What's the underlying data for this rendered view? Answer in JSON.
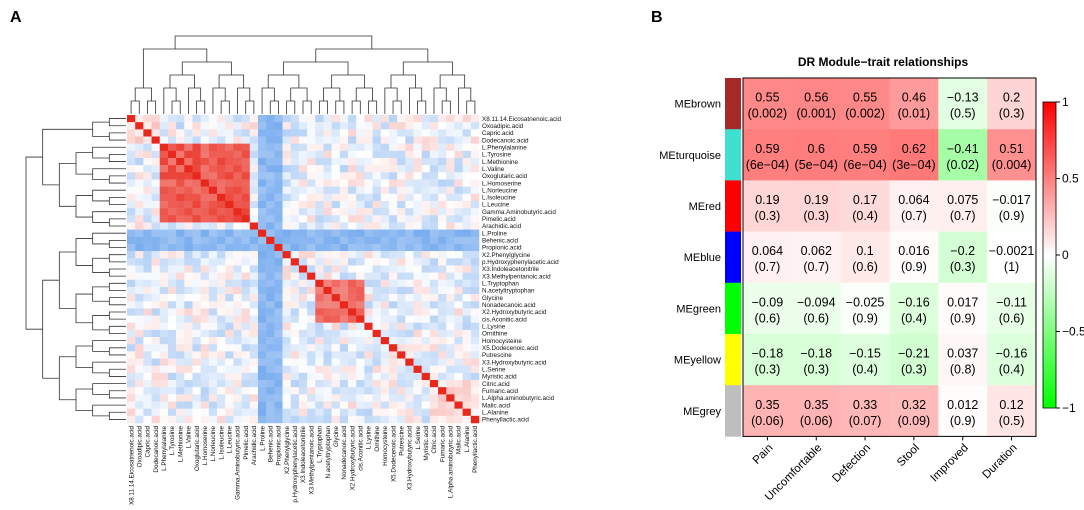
{
  "panels": {
    "a": "A",
    "b": "B"
  },
  "chart_data": [
    {
      "type": "heatmap",
      "panel": "A",
      "description_kind": "metabolite correlation heatmap with dendrograms",
      "color_scale": {
        "low": "#2e7fe6",
        "mid": "#ffffff",
        "high": "#e8281c"
      },
      "row_labels": [
        "X8.11.14.Eicosatrienoic.acid",
        "Oxoadipic.acid",
        "Capric.acid",
        "Dodecanoic.acid",
        "L.Phenylalanine",
        "L.Tyrosine",
        "L.Methionine",
        "L.Valine",
        "Oxoglutaric.acid",
        "L.Homoserine",
        "L.Norleucine",
        "L.Isoleucine",
        "L.Leucine",
        "Gamma.Aminobutyric.acid",
        "Pimelic.acid",
        "Arachidic.acid",
        "L.Proline",
        "Behenic.acid",
        "Propionic.acid",
        "X2.Phenylglycine",
        "p.Hydroxyphenylacetic.acid",
        "X3.Indoleacetonitrile",
        "X3.Methylpentanoic.acid",
        "L.Tryptophan",
        "N.acetyltryptophan",
        "Glycine",
        "Nonadecanoic.acid",
        "X2.Hydroxybutyric.acid",
        "cis.Aconitic.acid",
        "L.Lysine",
        "Ornithine",
        "Homocysteine",
        "X5.Dodecenoic.acid",
        "Putrescine",
        "X3.Hydroxybutyric.acid",
        "L.Serine",
        "Myristic.acid",
        "Citric.acid",
        "Fumaric.acid",
        "L.Alpha.aminobutyric.acid",
        "Malic.acid",
        "L.Alanine",
        "Phenyllactic.acid"
      ],
      "col_labels": [
        "X8.11.14.Eicosatrienoic.acid",
        "Oxoadipic.acid",
        "Capric.acid",
        "Dodecanoic.acid",
        "L.Phenylalanine",
        "L.Tyrosine",
        "L.Methionine",
        "L.Valine",
        "Oxoglutaric.acid",
        "L.Homoserine",
        "L.Norleucine",
        "L.Isoleucine",
        "L.Leucine",
        "Gamma.Aminobutyric.acid",
        "Pimelic.acid",
        "Arachidic.acid",
        "L.Proline",
        "Behenic.acid",
        "Propionic.acid",
        "X2.Phenylglycine",
        "p.Hydroxyphenylacetic.acid",
        "X3.Indoleacetonitrile",
        "X3.Methylpentanoic.acid",
        "L.Tryptophan",
        "N.acetyltryptophan",
        "Glycine",
        "Nonadecanoic.acid",
        "X2.Hydroxybutyric.acid",
        "cis.Aconitic.acid",
        "L.Lysine",
        "Ornithine",
        "Homocysteine",
        "X5.Dodecenoic.acid",
        "Putrescine",
        "X3.Hydroxybutyric.acid",
        "L.Serine",
        "Myristic.acid",
        "Citric.acid",
        "Fumaric.acid",
        "L.Alpha.aminobutyric.acid",
        "Malic.acid",
        "L.Alanine",
        "Phenyllactic.acid"
      ],
      "blocks": [
        {
          "rows": [
            4,
            14
          ],
          "value": 0.75
        },
        {
          "rows": [
            23,
            28
          ],
          "value": 0.65
        },
        {
          "rows": [
            0,
            3
          ],
          "value": 0.2
        },
        {
          "rows": [
            37,
            42
          ],
          "value": 0.15
        }
      ],
      "negative_rows": [
        16,
        17,
        18
      ],
      "negative_cols": [
        16,
        17,
        18
      ]
    },
    {
      "type": "heatmap",
      "panel": "B",
      "title": "DR Module−trait relationships",
      "rows": [
        {
          "name": "MEbrown",
          "color": "#a52a2a"
        },
        {
          "name": "MEturquoise",
          "color": "#40e0d0"
        },
        {
          "name": "MEred",
          "color": "#ff0000"
        },
        {
          "name": "MEblue",
          "color": "#0000ff"
        },
        {
          "name": "MEgreen",
          "color": "#00ff00"
        },
        {
          "name": "MEyellow",
          "color": "#ffff00"
        },
        {
          "name": "MEgrey",
          "color": "#bebebe"
        }
      ],
      "columns": [
        "Pain",
        "Uncomfortable",
        "Defection",
        "Stool",
        "Improved",
        "Duration"
      ],
      "values": [
        [
          0.55,
          0.56,
          0.55,
          0.46,
          -0.13,
          0.2
        ],
        [
          0.59,
          0.6,
          0.59,
          0.62,
          -0.41,
          0.51
        ],
        [
          0.19,
          0.19,
          0.17,
          0.064,
          0.075,
          -0.017
        ],
        [
          0.064,
          0.062,
          0.1,
          0.016,
          -0.2,
          -0.0021
        ],
        [
          -0.09,
          -0.094,
          -0.025,
          -0.16,
          0.017,
          -0.11
        ],
        [
          -0.18,
          -0.18,
          -0.15,
          -0.21,
          0.037,
          -0.16
        ],
        [
          0.35,
          0.35,
          0.33,
          0.32,
          0.012,
          0.12
        ]
      ],
      "cell_labels": [
        [
          "0.55",
          "0.56",
          "0.55",
          "0.46",
          "−0.13",
          "0.2"
        ],
        [
          "0.59",
          "0.6",
          "0.59",
          "0.62",
          "−0.41",
          "0.51"
        ],
        [
          "0.19",
          "0.19",
          "0.17",
          "0.064",
          "0.075",
          "−0.017"
        ],
        [
          "0.064",
          "0.062",
          "0.1",
          "0.016",
          "−0.2",
          "−0.0021"
        ],
        [
          "−0.09",
          "−0.094",
          "−0.025",
          "−0.16",
          "0.017",
          "−0.11"
        ],
        [
          "−0.18",
          "−0.18",
          "−0.15",
          "−0.21",
          "0.037",
          "−0.16"
        ],
        [
          "0.35",
          "0.35",
          "0.33",
          "0.32",
          "0.012",
          "0.12"
        ]
      ],
      "pvalues": [
        [
          "(0.002)",
          "(0.001)",
          "(0.002)",
          "(0.01)",
          "(0.5)",
          "(0.3)"
        ],
        [
          "(6e−04)",
          "(5e−04)",
          "(6e−04)",
          "(3e−04)",
          "(0.02)",
          "(0.004)"
        ],
        [
          "(0.3)",
          "(0.3)",
          "(0.4)",
          "(0.7)",
          "(0.7)",
          "(0.9)"
        ],
        [
          "(0.7)",
          "(0.7)",
          "(0.6)",
          "(0.9)",
          "(0.3)",
          "(1)"
        ],
        [
          "(0.6)",
          "(0.6)",
          "(0.9)",
          "(0.4)",
          "(0.9)",
          "(0.6)"
        ],
        [
          "(0.3)",
          "(0.3)",
          "(0.4)",
          "(0.3)",
          "(0.8)",
          "(0.4)"
        ],
        [
          "(0.06)",
          "(0.06)",
          "(0.07)",
          "(0.09)",
          "(0.9)",
          "(0.5)"
        ]
      ],
      "legend": {
        "ticks": [
          "1",
          "0.5",
          "0",
          "−0.5",
          "−1"
        ],
        "values": [
          1,
          0.5,
          0,
          -0.5,
          -1
        ],
        "range": [
          -1,
          1
        ],
        "high_color": "#ff0000",
        "mid_color": "#ffffff",
        "low_color": "#00ff00"
      }
    }
  ]
}
